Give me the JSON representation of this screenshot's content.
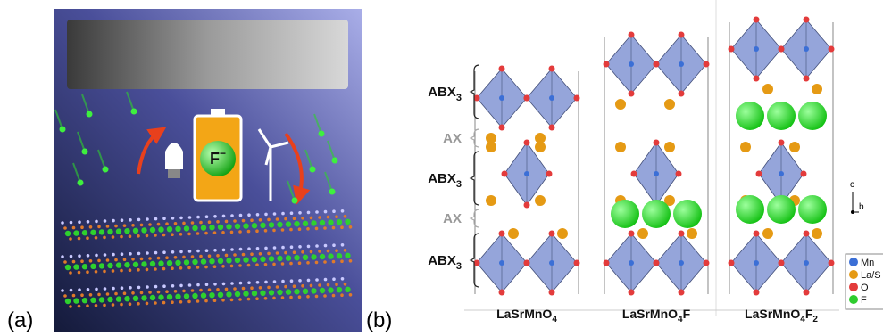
{
  "panel_a": {
    "label": "(a)",
    "ion": [
      "F",
      "−"
    ]
  },
  "panel_b": {
    "label": "(b)",
    "layer_labels": [
      [
        "ABX",
        "3"
      ],
      [
        "AX"
      ],
      [
        "ABX",
        "3"
      ],
      [
        "AX"
      ],
      [
        "ABX",
        "3"
      ]
    ],
    "compounds": [
      [
        "LaSrMnO",
        "4"
      ],
      [
        "LaSrMnO",
        "4",
        "F"
      ],
      [
        "LaSrMnO",
        "4",
        "F",
        "2"
      ]
    ],
    "axes": [
      "c",
      "b"
    ],
    "legend": [
      {
        "label": "Mn",
        "color": "#3b6fd6"
      },
      {
        "label": "La/S",
        "color": "#e59a14"
      },
      {
        "label": "O",
        "color": "#e33b3b"
      },
      {
        "label": "F",
        "color": "#2ecc2e"
      }
    ]
  }
}
